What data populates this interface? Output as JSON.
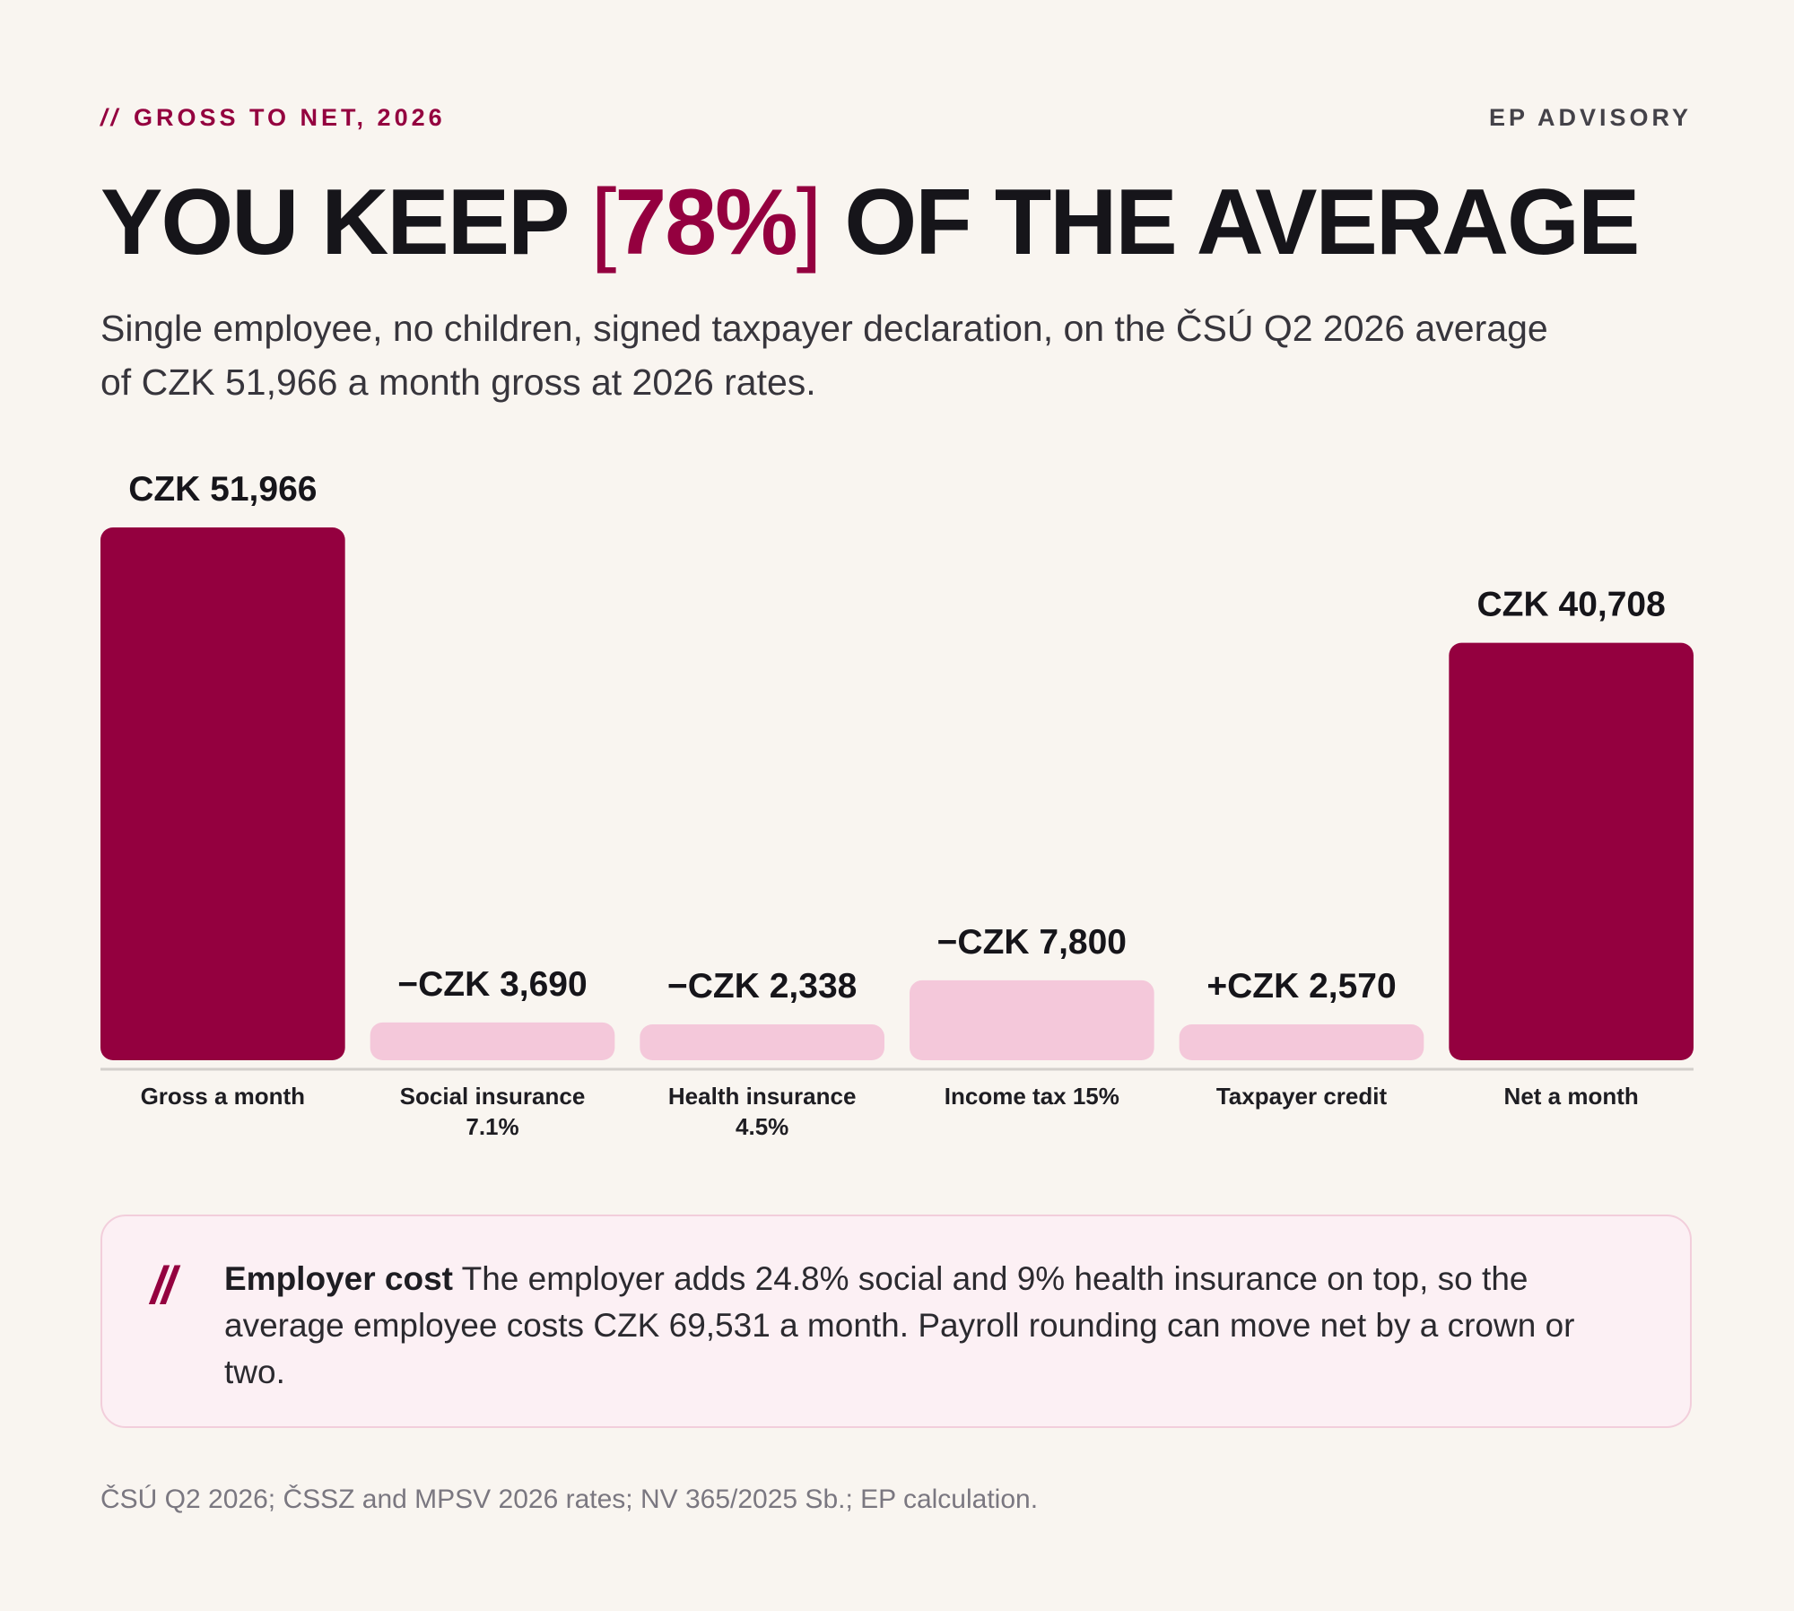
{
  "header": {
    "eyebrow_prefix": "//",
    "eyebrow": "GROSS TO NET, 2026",
    "brand": "EP ADVISORY"
  },
  "headline": {
    "before": "YOU KEEP",
    "bracket_open": "[",
    "accent": "78%",
    "bracket_close": "]",
    "after": "OF THE AVERAGE"
  },
  "subhead": "Single employee, no children, signed taxpayer declaration, on the ČSÚ Q2 2026 average of CZK 51,966 a month gross at 2026 rates.",
  "colors": {
    "accent": "#94003f",
    "light_bar": "#f4c8da",
    "background": "#f9f5f0",
    "text": "#16151a"
  },
  "chart_data": {
    "type": "bar",
    "categories": [
      [
        "Gross a month"
      ],
      [
        "Social insurance",
        "7.1%"
      ],
      [
        "Health insurance",
        "4.5%"
      ],
      [
        "Income tax 15%"
      ],
      [
        "Taxpayer credit"
      ],
      [
        "Net a month"
      ]
    ],
    "values": [
      51966,
      3690,
      2338,
      7800,
      2570,
      40708
    ],
    "value_labels": [
      "CZK 51,966",
      "−CZK 3,690",
      "−CZK 2,338",
      "−CZK 7,800",
      "+CZK 2,570",
      "CZK 40,708"
    ],
    "emphasis": [
      true,
      false,
      false,
      false,
      false,
      true
    ],
    "ylim": [
      0,
      51966
    ],
    "grid": false,
    "legend": "none"
  },
  "callout": {
    "mark": "//",
    "title": "Employer cost",
    "text": "The employer adds 24.8% social and 9% health insurance on top, so the average employee costs CZK 69,531 a month. Payroll rounding can move net by a crown or two."
  },
  "source": "ČSÚ Q2 2026; ČSSZ and MPSV 2026 rates; NV 365/2025 Sb.; EP calculation."
}
